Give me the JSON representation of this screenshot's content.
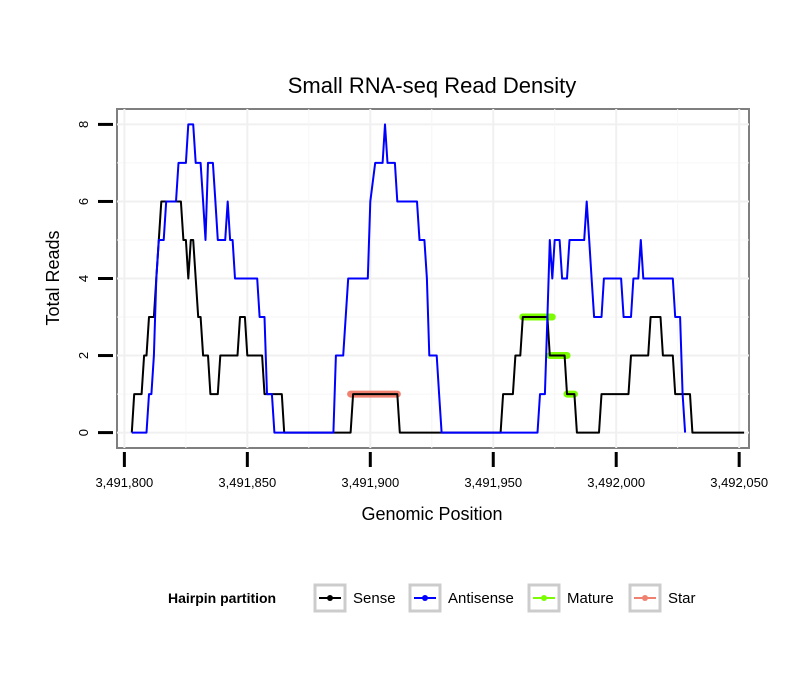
{
  "chart_data": {
    "type": "line",
    "title": "Small RNA-seq Read Density",
    "xlabel": "Genomic Position",
    "ylabel": "Total Reads",
    "xlim": [
      3491797,
      3492054
    ],
    "ylim": [
      -0.4,
      8.4
    ],
    "x_ticks": [
      {
        "value": 3491800,
        "label": "3,491,800"
      },
      {
        "value": 3491850,
        "label": "3,491,850"
      },
      {
        "value": 3491900,
        "label": "3,491,900"
      },
      {
        "value": 3491950,
        "label": "3,491,950"
      },
      {
        "value": 3492000,
        "label": "3,492,000"
      },
      {
        "value": 3492050,
        "label": "3,492,050"
      }
    ],
    "y_ticks": [
      {
        "value": 0,
        "label": "0"
      },
      {
        "value": 2,
        "label": "2"
      },
      {
        "value": 4,
        "label": "4"
      },
      {
        "value": 6,
        "label": "6"
      },
      {
        "value": 8,
        "label": "8"
      }
    ],
    "legend": {
      "title": "Hairpin partition",
      "position": "bottom",
      "entries": [
        {
          "name": "Sense",
          "color": "#000000"
        },
        {
          "name": "Antisense",
          "color": "#0000ff"
        },
        {
          "name": "Mature",
          "color": "#7cfc00"
        },
        {
          "name": "Star",
          "color": "#f08070"
        }
      ]
    },
    "series": [
      {
        "name": "Sense",
        "color": "#000000",
        "stroke_width": 2,
        "points": [
          [
            3491803,
            0
          ],
          [
            3491804,
            1
          ],
          [
            3491807,
            1
          ],
          [
            3491808,
            2
          ],
          [
            3491809,
            2
          ],
          [
            3491810,
            3
          ],
          [
            3491812,
            3
          ],
          [
            3491813,
            4
          ],
          [
            3491814,
            5
          ],
          [
            3491815,
            6
          ],
          [
            3491823,
            6
          ],
          [
            3491824,
            5
          ],
          [
            3491825,
            5
          ],
          [
            3491826,
            4
          ],
          [
            3491827,
            5
          ],
          [
            3491828,
            5
          ],
          [
            3491829,
            4
          ],
          [
            3491830,
            3
          ],
          [
            3491831,
            3
          ],
          [
            3491832,
            2
          ],
          [
            3491834,
            2
          ],
          [
            3491835,
            1
          ],
          [
            3491838,
            1
          ],
          [
            3491839,
            2
          ],
          [
            3491846,
            2
          ],
          [
            3491847,
            3
          ],
          [
            3491849,
            3
          ],
          [
            3491850,
            2
          ],
          [
            3491856,
            2
          ],
          [
            3491857,
            1
          ],
          [
            3491864,
            1
          ],
          [
            3491865,
            0
          ],
          [
            3491892,
            0
          ],
          [
            3491893,
            1
          ],
          [
            3491911,
            1
          ],
          [
            3491912,
            0
          ],
          [
            3491953,
            0
          ],
          [
            3491954,
            1
          ],
          [
            3491958,
            1
          ],
          [
            3491959,
            2
          ],
          [
            3491961,
            2
          ],
          [
            3491962,
            3
          ],
          [
            3491972,
            3
          ],
          [
            3491973,
            2
          ],
          [
            3491979,
            2
          ],
          [
            3491980,
            1
          ],
          [
            3491983,
            1
          ],
          [
            3491984,
            0
          ],
          [
            3491993,
            0
          ],
          [
            3491994,
            1
          ],
          [
            3492005,
            1
          ],
          [
            3492006,
            2
          ],
          [
            3492013,
            2
          ],
          [
            3492014,
            3
          ],
          [
            3492018,
            3
          ],
          [
            3492019,
            2
          ],
          [
            3492023,
            2
          ],
          [
            3492024,
            1
          ],
          [
            3492030,
            1
          ],
          [
            3492031,
            0
          ],
          [
            3492052,
            0
          ]
        ]
      },
      {
        "name": "Antisense",
        "color": "#0000ff",
        "stroke_width": 2,
        "points": [
          [
            3491803,
            0
          ],
          [
            3491809,
            0
          ],
          [
            3491810,
            1
          ],
          [
            3491811,
            1
          ],
          [
            3491812,
            2
          ],
          [
            3491813,
            4
          ],
          [
            3491814,
            5
          ],
          [
            3491816,
            5
          ],
          [
            3491817,
            6
          ],
          [
            3491821,
            6
          ],
          [
            3491822,
            7
          ],
          [
            3491825,
            7
          ],
          [
            3491826,
            8
          ],
          [
            3491828,
            8
          ],
          [
            3491829,
            7
          ],
          [
            3491831,
            7
          ],
          [
            3491832,
            6
          ],
          [
            3491833,
            5
          ],
          [
            3491834,
            7
          ],
          [
            3491836,
            7
          ],
          [
            3491837,
            6
          ],
          [
            3491838,
            5
          ],
          [
            3491841,
            5
          ],
          [
            3491842,
            6
          ],
          [
            3491843,
            5
          ],
          [
            3491844,
            5
          ],
          [
            3491845,
            4
          ],
          [
            3491854,
            4
          ],
          [
            3491855,
            3
          ],
          [
            3491857,
            3
          ],
          [
            3491858,
            1
          ],
          [
            3491860,
            1
          ],
          [
            3491861,
            0
          ],
          [
            3491885,
            0
          ],
          [
            3491886,
            2
          ],
          [
            3491889,
            2
          ],
          [
            3491890,
            3
          ],
          [
            3491891,
            4
          ],
          [
            3491899,
            4
          ],
          [
            3491900,
            6
          ],
          [
            3491902,
            7
          ],
          [
            3491905,
            7
          ],
          [
            3491906,
            8
          ],
          [
            3491907,
            7
          ],
          [
            3491910,
            7
          ],
          [
            3491911,
            6
          ],
          [
            3491919,
            6
          ],
          [
            3491920,
            5
          ],
          [
            3491922,
            5
          ],
          [
            3491923,
            4
          ],
          [
            3491924,
            2
          ],
          [
            3491927,
            2
          ],
          [
            3491928,
            1
          ],
          [
            3491929,
            0
          ],
          [
            3491968,
            0
          ],
          [
            3491969,
            1
          ],
          [
            3491971,
            1
          ],
          [
            3491972,
            3
          ],
          [
            3491973,
            5
          ],
          [
            3491974,
            4
          ],
          [
            3491975,
            5
          ],
          [
            3491977,
            5
          ],
          [
            3491978,
            4
          ],
          [
            3491980,
            4
          ],
          [
            3491981,
            5
          ],
          [
            3491987,
            5
          ],
          [
            3491988,
            6
          ],
          [
            3491989,
            5
          ],
          [
            3491990,
            4
          ],
          [
            3491991,
            3
          ],
          [
            3491994,
            3
          ],
          [
            3491995,
            4
          ],
          [
            3492002,
            4
          ],
          [
            3492003,
            3
          ],
          [
            3492006,
            3
          ],
          [
            3492007,
            4
          ],
          [
            3492009,
            4
          ],
          [
            3492010,
            5
          ],
          [
            3492011,
            4
          ],
          [
            3492023,
            4
          ],
          [
            3492024,
            3
          ],
          [
            3492026,
            3
          ],
          [
            3492027,
            1
          ],
          [
            3492028,
            0
          ]
        ]
      }
    ],
    "segments": [
      {
        "name": "Star",
        "color": "#f08070",
        "y": 1,
        "x_start": 3491892,
        "x_end": 3491911
      },
      {
        "name": "Mature",
        "color": "#7cfc00",
        "y": 3,
        "x_start": 3491962,
        "x_end": 3491974
      },
      {
        "name": "Mature",
        "color": "#7cfc00",
        "y": 2,
        "x_start": 3491973,
        "x_end": 3491980
      },
      {
        "name": "Mature",
        "color": "#7cfc00",
        "y": 1,
        "x_start": 3491980,
        "x_end": 3491983
      }
    ]
  }
}
